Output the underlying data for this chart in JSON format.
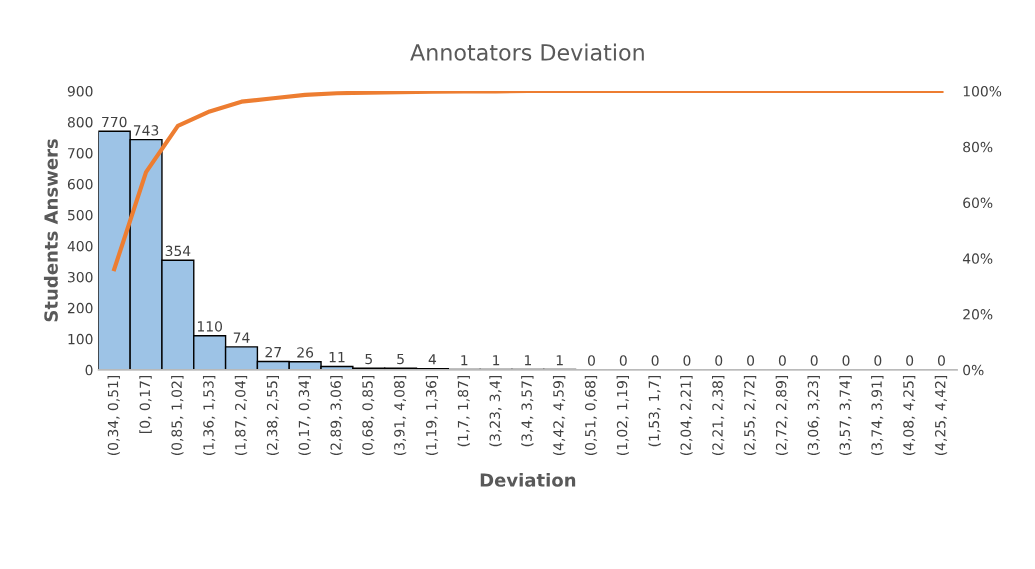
{
  "chart_data": {
    "type": "bar",
    "title": "Annotators Deviation",
    "xlabel": "Deviation",
    "ylabel": "Students Answers",
    "categories": [
      "(0,34, 0,51]",
      "[0, 0,17]",
      "(0,85, 1,02]",
      "(1,36, 1,53]",
      "(1,87, 2,04]",
      "(2,38, 2,55]",
      "(0,17, 0,34]",
      "(2,89, 3,06]",
      "(0,68, 0,85]",
      "(3,91, 4,08]",
      "(1,19, 1,36]",
      "(1,7, 1,87]",
      "(3,23, 3,4]",
      "(3,4, 3,57]",
      "(4,42, 4,59]",
      "(0,51, 0,68]",
      "(1,02, 1,19]",
      "(1,53, 1,7]",
      "(2,04, 2,21]",
      "(2,21, 2,38]",
      "(2,55, 2,72]",
      "(2,72, 2,89]",
      "(3,06, 3,23]",
      "(3,57, 3,74]",
      "(3,74, 3,91]",
      "(4,08, 4,25]",
      "(4,25, 4,42]"
    ],
    "series": [
      {
        "color": "#9dc3e6",
        "values": [
          770,
          743,
          354,
          110,
          74,
          27,
          26,
          11,
          5,
          5,
          4,
          1,
          1,
          1,
          1,
          0,
          0,
          0,
          0,
          0,
          0,
          0,
          0,
          0,
          0,
          0,
          0
        ],
        "value_labels": [
          "770",
          "743",
          "354",
          "110",
          "74",
          "27",
          "26",
          "11",
          "5",
          "5",
          "4",
          "1",
          "1",
          "1",
          "1",
          "0",
          "0",
          "0",
          "0",
          "0",
          "0",
          "0",
          "0",
          "0",
          "0",
          "0",
          "0"
        ]
      },
      {
        "type": "line",
        "axis": "y2",
        "color": "#ed7d31",
        "values": [
          36.1,
          70.9,
          87.5,
          92.7,
          96.2,
          97.4,
          98.6,
          99.2,
          99.4,
          99.6,
          99.8,
          99.9,
          99.9,
          100,
          100,
          100,
          100,
          100,
          100,
          100,
          100,
          100,
          100,
          100,
          100,
          100,
          100
        ]
      }
    ],
    "grid": false,
    "legend": false,
    "ylim": [
      0,
      900
    ],
    "yticks": [
      0,
      100,
      200,
      300,
      400,
      500,
      600,
      700,
      800,
      900
    ],
    "y2lim": [
      0,
      100
    ],
    "y2ticks": [
      {
        "value": 0,
        "label": "0%"
      },
      {
        "value": 20,
        "label": "20%"
      },
      {
        "value": 40,
        "label": "40%"
      },
      {
        "value": 60,
        "label": "60%"
      },
      {
        "value": 80,
        "label": "80%"
      },
      {
        "value": 100,
        "label": "100%"
      }
    ]
  }
}
